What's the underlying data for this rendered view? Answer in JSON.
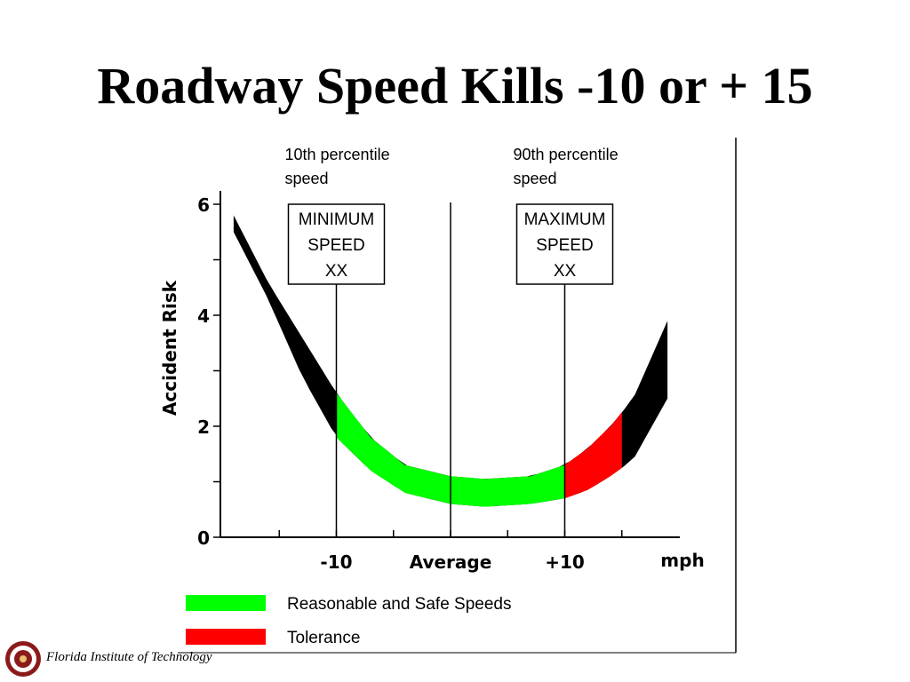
{
  "slide": {
    "title": "Roadway Speed Kills -10 or + 15"
  },
  "footer": {
    "institution": "Florida Institute of Technology",
    "logo_icon": "university-seal-icon",
    "logo_color": "#8b1a1a"
  },
  "chart_data": {
    "type": "line",
    "title": "",
    "ylabel": "Accident Risk",
    "xlabel": "mph",
    "ylim": [
      0,
      6
    ],
    "yticks": [
      0,
      2,
      4,
      6
    ],
    "ytick_labels": [
      "0",
      "2",
      "4",
      "6"
    ],
    "xlim": [
      -20,
      20
    ],
    "xticks": [
      -10,
      0,
      10
    ],
    "xtick_labels": [
      "-10",
      "Average",
      "+10"
    ],
    "grid": false,
    "legend_position": "bottom-left",
    "colors": {
      "risk_curve": "#000000",
      "safe": "#00ff00",
      "tolerance": "#ff0000"
    },
    "series": [
      {
        "name": "",
        "x": [
          -19,
          -16,
          -13,
          -10,
          -7,
          -4,
          0,
          3,
          7,
          10,
          12,
          14,
          16,
          19
        ],
        "y_low": [
          5.5,
          4.3,
          2.9,
          1.8,
          1.2,
          0.8,
          0.6,
          0.55,
          0.6,
          0.7,
          0.85,
          1.1,
          1.4,
          2.5
        ],
        "y_high": [
          5.8,
          4.6,
          3.6,
          2.6,
          1.8,
          1.3,
          1.1,
          1.05,
          1.1,
          1.3,
          1.6,
          2.0,
          2.5,
          3.9
        ]
      }
    ],
    "bands": [
      {
        "label": "Reasonable and Safe Speeds",
        "from": -10,
        "to": 10,
        "color": "#00ff00"
      },
      {
        "label": "Tolerance",
        "from": 10,
        "to": 15,
        "color": "#ff0000"
      }
    ],
    "markers": [
      {
        "x": -10,
        "label_above": "10th percentile\nspeed",
        "box_text": "MINIMUM\nSPEED\nXX"
      },
      {
        "x": 0,
        "label_above": "",
        "box_text": ""
      },
      {
        "x": 10,
        "label_above": "90th percentile\nspeed",
        "box_text": "MAXIMUM\nSPEED\nXX"
      }
    ],
    "legend": [
      {
        "label": "Reasonable and Safe Speeds",
        "color": "#00ff00"
      },
      {
        "label": "Tolerance",
        "color": "#ff0000"
      }
    ]
  }
}
